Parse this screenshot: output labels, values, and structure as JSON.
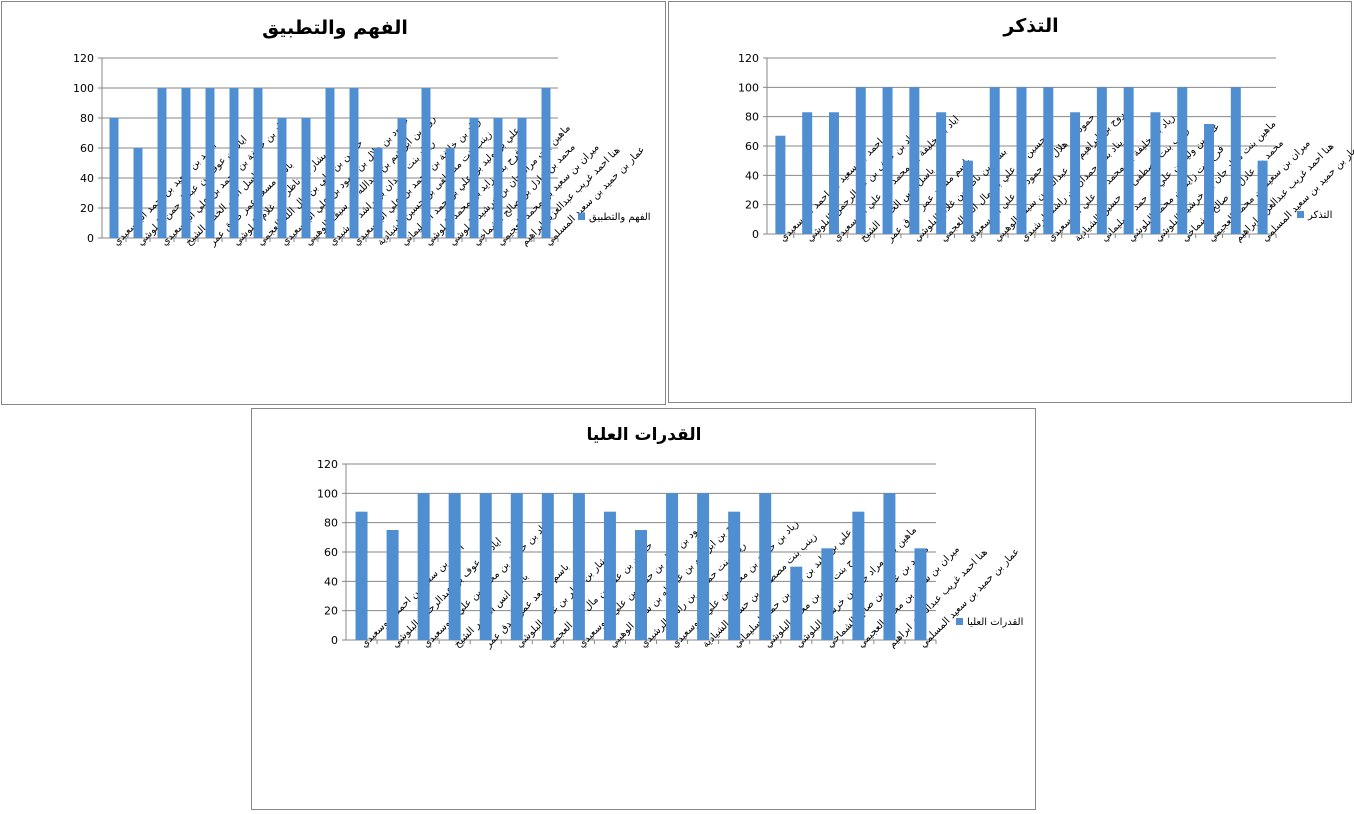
{
  "chart_data": [
    {
      "type": "bar",
      "title": "الفهم والتطبيق",
      "series": [
        {
          "name": "الفهم والتطبيق",
          "values": [
            80,
            60,
            100,
            100,
            100,
            100,
            100,
            80,
            80,
            100,
            100,
            60,
            80,
            100,
            60,
            80,
            80,
            80,
            100
          ]
        }
      ],
      "ylim": [
        0,
        120
      ],
      "yticks": [
        0,
        20,
        40,
        60,
        80,
        100,
        120
      ],
      "legend": "right",
      "grid": true,
      "color": "#4f8fd1",
      "categories": [
        "احمد بن سعيد بن احمد البوسعيدي",
        "اياد بن عوف بن عبدالرحمن البلوشي",
        "اياد بن خليفة بن محمد بن علي البوسعيدي",
        "باسل انس الخضر الشيخ",
        "باسم مسعد عمر صدق عمر",
        "بشار بن ناظر بن غلام البلوشي",
        "حسين بن علي بن مال الله العجمي",
        "حمود بن هلال بن حمود بن علي البوسعيدي",
        "روح بن ابراهيم بن عبدالله بن سيف الوهيبي",
        "ريناد بنت حمدان بن راشد الرشيدي",
        "زياد بن خليفة بن محمد بن علي البوسعيدي",
        "زينب بنت مصطفى بن حسين الشيادية",
        "علي بن وليد بن علي بن حمد السليماني",
        "فرح بنت زايد بن محمد البلوشي",
        "ماهين بنت مراد جان بن خرشيد البلوشي",
        "محمد بن عادل بن صالح الشماخي",
        "ميران بن سعيد بن محمد العجيمي",
        "هنا احمد غريب عبدالعزيز ابراهيم",
        "عمار بن حميد بن سعيد المسلمي"
      ]
    },
    {
      "type": "bar",
      "title": "التذكر",
      "series": [
        {
          "name": "التذكر",
          "values": [
            67,
            83,
            83,
            100,
            100,
            100,
            83,
            50,
            100,
            100,
            100,
            83,
            100,
            100,
            83,
            100,
            75,
            100,
            50
          ]
        }
      ],
      "ylim": [
        0,
        120
      ],
      "yticks": [
        0,
        20,
        40,
        60,
        80,
        100,
        120
      ],
      "legend": "right",
      "grid": true,
      "color": "#4f8fd1",
      "categories": [
        "احمد بن سعيد بن احمد البوسعيدي",
        "اياد بن عوف بن عبدالرحمن البلوشي",
        "اياد بن خليفة بن محمد بن علي البوسعيدي",
        "باسل انس الخضر الشيخ",
        "باسم مسعد عمر صدق عمر",
        "بشار بن ناظر بن غلام البلوشي",
        "حسين بن علي بن مال الله العجمي",
        "حمود بن هلال بن حمود بن علي البوسعيدي",
        "روح بن ابراهيم بن عبدالله بن سيف الوهيبي",
        "ريناد بنت حمدان بن راشد الرشيدي",
        "زياد بن خليفة بن محمد بن علي البوسعيدي",
        "زينب بنت مصطفى بن حسين الشيادية",
        "علي بن وليد بن علي بن حمد السليماني",
        "فرح بنت زايد بن محمد البلوشي",
        "ماهين بنت مراد جان بن خرشيد البلوشي",
        "محمد بن عادل بن صالح الشماخي",
        "ميران بن سعيد بن محمد العجيمي",
        "هنا احمد غريب عبدالعزيز ابراهيم",
        "عمار بن حميد بن سعيد المسلمي"
      ]
    },
    {
      "type": "bar",
      "title": "القدرات العليا",
      "series": [
        {
          "name": "القدرات العليا",
          "values": [
            87.5,
            75,
            100,
            100,
            100,
            100,
            100,
            100,
            87.5,
            75,
            100,
            100,
            87.5,
            100,
            50,
            62.5,
            87.5,
            100,
            62.5
          ]
        }
      ],
      "ylim": [
        0,
        120
      ],
      "yticks": [
        0,
        20,
        40,
        60,
        80,
        100,
        120
      ],
      "legend": "right",
      "grid": true,
      "color": "#4f8fd1",
      "categories": [
        "احمد بن سعيد بن احمد البوسعيدي",
        "اياد بن عوف بن عبدالرحمن البلوشي",
        "اياد بن خليفة بن محمد بن علي البوسعيدي",
        "باسل انس الخضر الشيخ",
        "باسم مسعد عمر صدق عمر",
        "بشار بن ناظر بن غلام البلوشي",
        "حسين بن علي بن مال الله العجمي",
        "حمود بن هلال بن حمود بن علي البوسعيدي",
        "روح بن ابراهيم بن عبدالله بن سيف الوهيبي",
        "ريناد بنت حمدان بن راشد الرشيدي",
        "زياد بن خليفة بن محمد بن علي البوسعيدي",
        "زينب بنت مصطفى بن حسين الشيادية",
        "علي بن وليد بن علي بن حمد السليماني",
        "فرح بنت زايد بن محمد البلوشي",
        "ماهين بنت مراد جان بن خرشيد البلوشي",
        "محمد بن عادل بن صالح الشماخي",
        "ميران بن سعيد بن محمد العجيمي",
        "هنا احمد غريب عبدالعزيز ابراهيم",
        "عمار بن حميد بن سعيد المسلمي"
      ]
    }
  ]
}
